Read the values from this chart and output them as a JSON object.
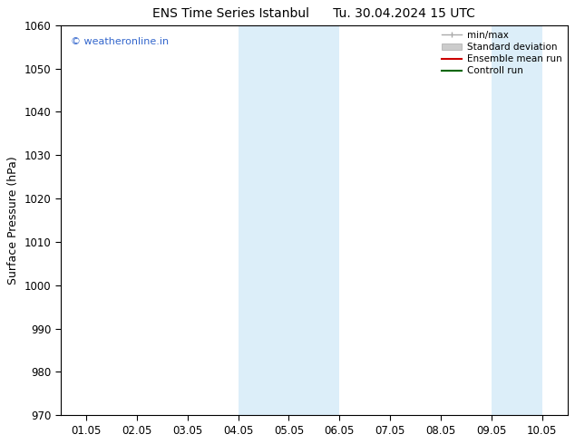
{
  "title": "ENS Time Series Istanbul      Tu. 30.04.2024 15 UTC",
  "ylabel": "Surface Pressure (hPa)",
  "ylim": [
    970,
    1060
  ],
  "yticks": [
    970,
    980,
    990,
    1000,
    1010,
    1020,
    1030,
    1040,
    1050,
    1060
  ],
  "xtick_labels": [
    "01.05",
    "02.05",
    "03.05",
    "04.05",
    "05.05",
    "06.05",
    "07.05",
    "08.05",
    "09.05",
    "10.05"
  ],
  "x_positions": [
    0,
    1,
    2,
    3,
    4,
    5,
    6,
    7,
    8,
    9
  ],
  "xlim": [
    -0.5,
    9.5
  ],
  "shaded_regions": [
    {
      "xmin": 3.0,
      "xmax": 5.0,
      "color": "#dceef9"
    },
    {
      "xmin": 8.0,
      "xmax": 9.0,
      "color": "#dceef9"
    }
  ],
  "watermark_text": "© weatheronline.in",
  "watermark_color": "#3366cc",
  "bg_color": "#ffffff",
  "title_fontsize": 10,
  "ylabel_fontsize": 9,
  "tick_fontsize": 8.5,
  "watermark_fontsize": 8,
  "legend_fontsize": 7.5,
  "legend_label_right_align": true
}
